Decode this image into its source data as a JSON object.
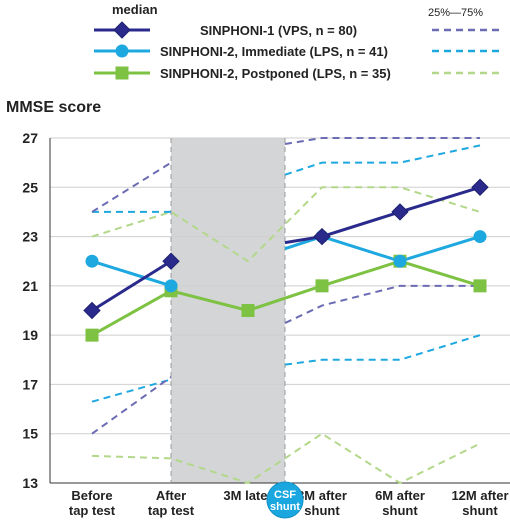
{
  "chart_data": {
    "type": "line",
    "ylabel": "MMSE score",
    "ylim": [
      13,
      27
    ],
    "yticks": [
      13,
      15,
      17,
      19,
      21,
      23,
      25,
      27
    ],
    "categories": [
      "Before\ntap test",
      "After\ntap test",
      "3M later",
      "3M after\nshunt",
      "6M after\nshunt",
      "12M after\nshunt"
    ],
    "csf_shunt_label": "CSF\nshunt",
    "legend": {
      "median_header": "median",
      "range_header": "25%—75%",
      "placement": "top"
    },
    "series": [
      {
        "name": "SINPHONI-1 (VPS, n = 80)",
        "color": "#2a2a8c",
        "marker": "diamond",
        "median": [
          20,
          22,
          23,
          24,
          25
        ],
        "median_x": [
          "Before\ntap test",
          "After\ntap test",
          "3M after\nshunt",
          "6M after\nshunt",
          "12M after\nshunt"
        ],
        "q1": [
          15,
          17.3,
          20.2,
          21,
          21
        ],
        "q1_x": [
          "Before\ntap test",
          "After\ntap test",
          "3M after\nshunt",
          "6M after\nshunt",
          "12M after\nshunt"
        ],
        "q3": [
          24,
          26,
          27,
          27,
          27
        ],
        "q3_x": [
          "Before\ntap test",
          "After\ntap test",
          "3M after\nshunt",
          "6M after\nshunt",
          "12M after\nshunt"
        ],
        "range_color": "#6c6cb4"
      },
      {
        "name": "SINPHONI-2, Immediate (LPS, n = 41)",
        "color": "#1ea8e0",
        "marker": "circle",
        "median": [
          22,
          21,
          23,
          22,
          23
        ],
        "median_x": [
          "Before\ntap test",
          "After\ntap test",
          "3M after\nshunt",
          "6M after\nshunt",
          "12M after\nshunt"
        ],
        "q1": [
          16.3,
          17.2,
          18,
          18,
          19
        ],
        "q1_x": [
          "Before\ntap test",
          "After\ntap test",
          "3M after\nshunt",
          "6M after\nshunt",
          "12M after\nshunt"
        ],
        "q3": [
          24,
          24,
          26,
          26,
          26.7
        ],
        "q3_x": [
          "Before\ntap test",
          "After\ntap test",
          "3M after\nshunt",
          "6M after\nshunt",
          "12M after\nshunt"
        ],
        "range_color": "#1ea8e0"
      },
      {
        "name": "SINPHONI-2, Postponed (LPS, n = 35)",
        "color": "#7dc242",
        "marker": "square",
        "median": [
          19,
          20.8,
          20,
          21,
          22,
          21
        ],
        "median_x": [
          "Before\ntap test",
          "After\ntap test",
          "3M later",
          "3M after\nshunt",
          "6M after\nshunt",
          "12M after\nshunt"
        ],
        "q1": [
          14.1,
          14,
          13,
          15,
          13,
          14.6
        ],
        "q1_x": [
          "Before\ntap test",
          "After\ntap test",
          "3M later",
          "3M after\nshunt",
          "6M after\nshunt",
          "12M after\nshunt"
        ],
        "q3": [
          23,
          24,
          22,
          25,
          25,
          24
        ],
        "q3_x": [
          "Before\ntap test",
          "After\ntap test",
          "3M later",
          "3M after\nshunt",
          "6M after\nshunt",
          "12M after\nshunt"
        ],
        "range_color": "#b3d88a"
      }
    ],
    "shaded_period": [
      "After\ntap test",
      "3M after\nshunt"
    ],
    "shaded_color": "#d4d5d7",
    "grid": true
  }
}
